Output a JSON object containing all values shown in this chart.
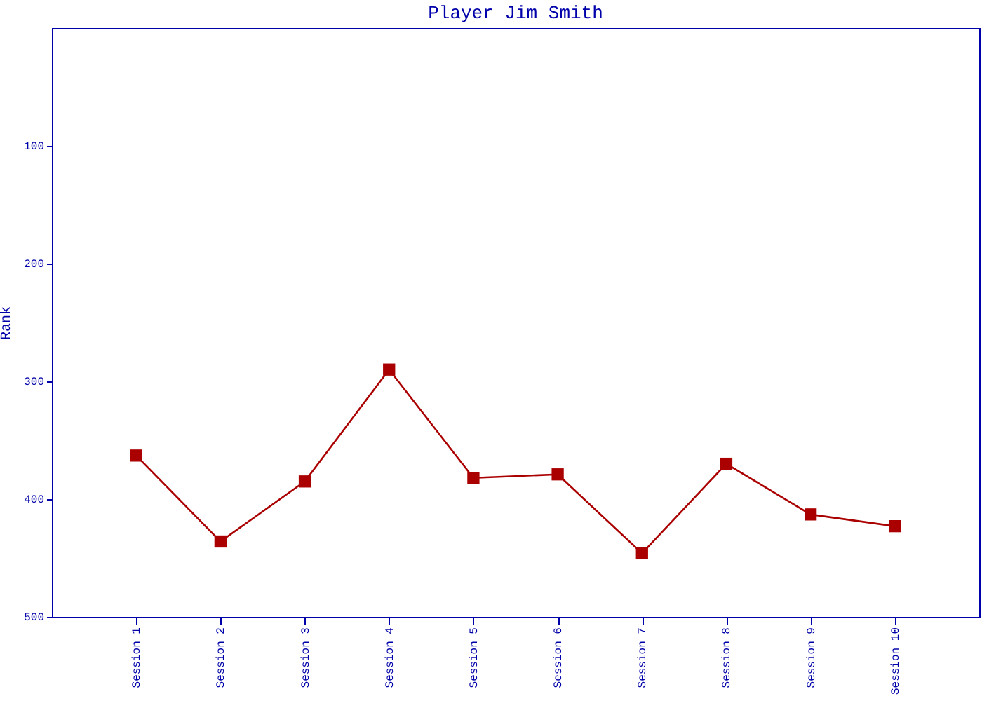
{
  "chart_data": {
    "type": "line",
    "title": "Player Jim Smith",
    "ylabel": "Rank",
    "categories": [
      "Session 1",
      "Session 2",
      "Session 3",
      "Session 4",
      "Session 5",
      "Session 6",
      "Session 7",
      "Session 8",
      "Session 9",
      "Session 10"
    ],
    "series": [
      {
        "color": "#aa0000",
        "values": [
          363,
          436,
          385,
          290,
          382,
          379,
          446,
          370,
          413,
          423
        ]
      }
    ],
    "ylim": [
      500,
      0
    ],
    "yticks": [
      100,
      200,
      300,
      400,
      500
    ],
    "marker": "square",
    "line_style": "solid"
  }
}
